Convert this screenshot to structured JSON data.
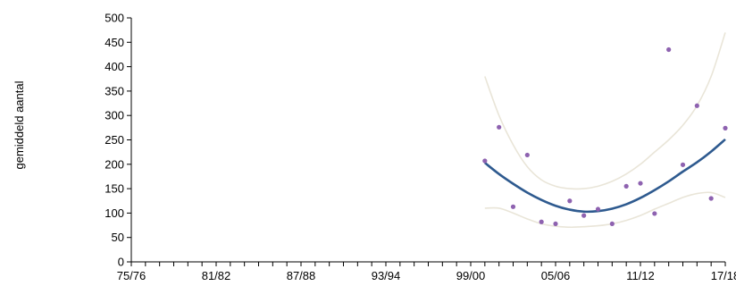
{
  "chart_data": {
    "type": "scatter",
    "title": "",
    "xlabel": "",
    "ylabel": "gemiddeld aantal",
    "ylim": [
      0,
      500
    ],
    "yticks": [
      0,
      50,
      100,
      150,
      200,
      250,
      300,
      350,
      400,
      450,
      500
    ],
    "xtick_labels": [
      "75/76",
      "81/82",
      "87/88",
      "93/94",
      "99/00",
      "05/06",
      "11/12",
      "17/18"
    ],
    "seasons": [
      "75/76",
      "76/77",
      "77/78",
      "78/79",
      "79/80",
      "80/81",
      "81/82",
      "82/83",
      "83/84",
      "84/85",
      "85/86",
      "86/87",
      "87/88",
      "88/89",
      "89/90",
      "90/91",
      "91/92",
      "92/93",
      "93/94",
      "94/95",
      "95/96",
      "96/97",
      "97/98",
      "98/99",
      "99/00",
      "00/01",
      "01/02",
      "02/03",
      "03/04",
      "04/05",
      "05/06",
      "06/07",
      "07/08",
      "08/09",
      "09/10",
      "10/11",
      "11/12",
      "12/13",
      "13/14",
      "14/15",
      "15/16",
      "16/17",
      "17/18"
    ],
    "grid": false,
    "colors": {
      "points": "#8e62b0",
      "trend": "#2e5a8f",
      "band": "#e9e5d8",
      "axis": "#000000"
    },
    "series": [
      {
        "type": "scatter",
        "x": [
          "00/01",
          "01/02",
          "02/03",
          "03/04",
          "04/05",
          "05/06",
          "06/07",
          "07/08",
          "08/09",
          "09/10",
          "10/11",
          "11/12",
          "12/13",
          "13/14",
          "14/15",
          "15/16",
          "16/17",
          "17/18"
        ],
        "y": [
          207,
          276,
          113,
          219,
          82,
          78,
          125,
          95,
          108,
          78,
          155,
          161,
          99,
          435,
          199,
          320,
          130,
          274
        ]
      },
      {
        "type": "line",
        "x": [
          "00/01",
          "01/02",
          "02/03",
          "03/04",
          "04/05",
          "05/06",
          "06/07",
          "07/08",
          "08/09",
          "09/10",
          "10/11",
          "11/12",
          "12/13",
          "13/14",
          "14/15",
          "15/16",
          "16/17",
          "17/18"
        ],
        "y": [
          203,
          180,
          160,
          142,
          127,
          115,
          107,
          103,
          104,
          109,
          118,
          131,
          147,
          165,
          185,
          204,
          226,
          251
        ]
      },
      {
        "type": "line",
        "x": [
          "00/01",
          "01/02",
          "02/03",
          "03/04",
          "04/05",
          "05/06",
          "06/07",
          "07/08",
          "08/09",
          "09/10",
          "10/11",
          "11/12",
          "12/13",
          "13/14",
          "14/15",
          "15/16",
          "16/17",
          "17/18"
        ],
        "y": [
          380,
          300,
          240,
          195,
          168,
          155,
          150,
          150,
          155,
          165,
          180,
          200,
          225,
          250,
          280,
          320,
          380,
          470
        ]
      },
      {
        "type": "line",
        "x": [
          "00/01",
          "01/02",
          "02/03",
          "03/04",
          "04/05",
          "05/06",
          "06/07",
          "07/08",
          "08/09",
          "09/10",
          "10/11",
          "11/12",
          "12/13",
          "13/14",
          "14/15",
          "15/16",
          "16/17",
          "17/18"
        ],
        "y": [
          110,
          110,
          100,
          88,
          78,
          73,
          71,
          72,
          74,
          78,
          85,
          95,
          108,
          120,
          132,
          140,
          142,
          132
        ]
      }
    ]
  }
}
